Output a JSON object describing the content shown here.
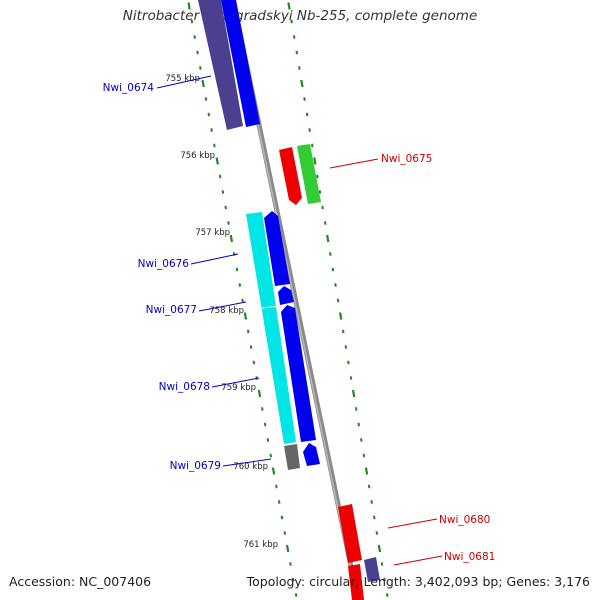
{
  "header": {
    "title": "Nitrobacter winogradskyi Nb-255, complete genome"
  },
  "footer": {
    "accession": "Accession: NC_007406",
    "stats": "Topology: circular; Length: 3,402,093 bp; Genes: 3,176"
  },
  "colors": {
    "backbone": "#8a8a8a",
    "tick": "#1f8a1f",
    "label_reverse": "#0000cc",
    "label_forward": "#cc0000",
    "gene_blue": "#0000ee",
    "gene_cyan": "#00e5e5",
    "gene_navy": "#4b3f8f",
    "gene_red": "#ee0000",
    "gene_green": "#33cc33",
    "gene_gray": "#666666"
  },
  "scale_labels": [
    "755 kbp",
    "756 kbp",
    "757 kbp",
    "758 kbp",
    "759 kbp",
    "760 kbp",
    "761 kbp"
  ],
  "gene_labels": [
    {
      "text": "Nwi_0674",
      "strand": "reverse"
    },
    {
      "text": "Nwi_0675",
      "strand": "forward"
    },
    {
      "text": "Nwi_0676",
      "strand": "reverse"
    },
    {
      "text": "Nwi_0677",
      "strand": "reverse"
    },
    {
      "text": "Nwi_0678",
      "strand": "reverse"
    },
    {
      "text": "Nwi_0679",
      "strand": "reverse"
    },
    {
      "text": "Nwi_0680",
      "strand": "forward"
    },
    {
      "text": "Nwi_0681",
      "strand": "forward"
    }
  ]
}
